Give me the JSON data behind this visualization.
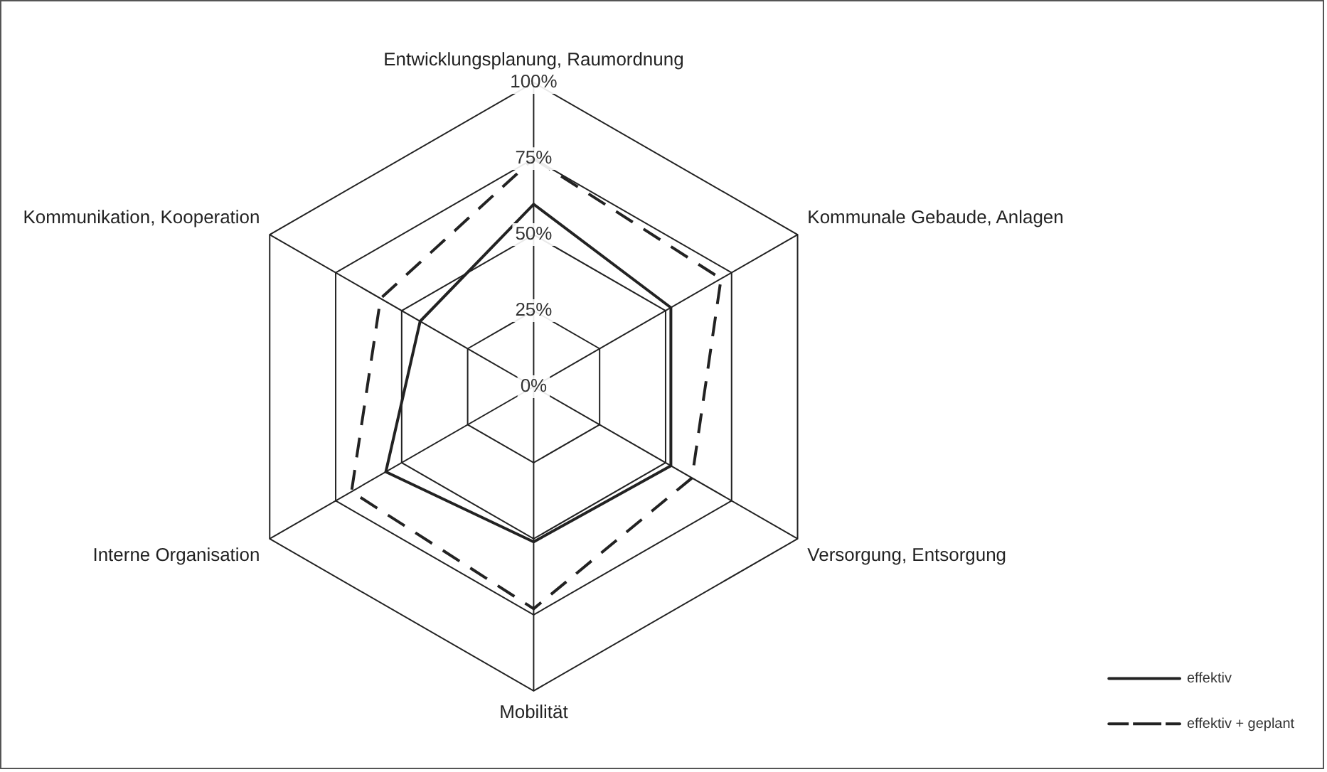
{
  "chart_data": {
    "type": "radar",
    "categories": [
      "Entwicklungsplanung, Raumordnung",
      "Kommunale Gebaude, Anlagen",
      "Versorgung, Entsorgung",
      "Mobilität",
      "Interne Organisation",
      "Kommunikation, Kooperation"
    ],
    "series": [
      {
        "name": "effektiv",
        "color": "#222222",
        "values": [
          60,
          52,
          52,
          51,
          56,
          43
        ],
        "line_style": "solid"
      },
      {
        "name": "effektiv + geplant",
        "color": "#222222",
        "values": [
          75,
          71,
          60,
          73,
          69,
          58
        ],
        "line_style": "dashed"
      }
    ],
    "ylim": [
      0,
      100
    ],
    "yticks": [
      {
        "value": 0,
        "label": "0%"
      },
      {
        "value": 25,
        "label": "25%"
      },
      {
        "value": 50,
        "label": "50%"
      },
      {
        "value": 75,
        "label": "75%"
      },
      {
        "value": 100,
        "label": "100%"
      }
    ],
    "grid": true,
    "legend": "bottom right",
    "marker": "none"
  }
}
